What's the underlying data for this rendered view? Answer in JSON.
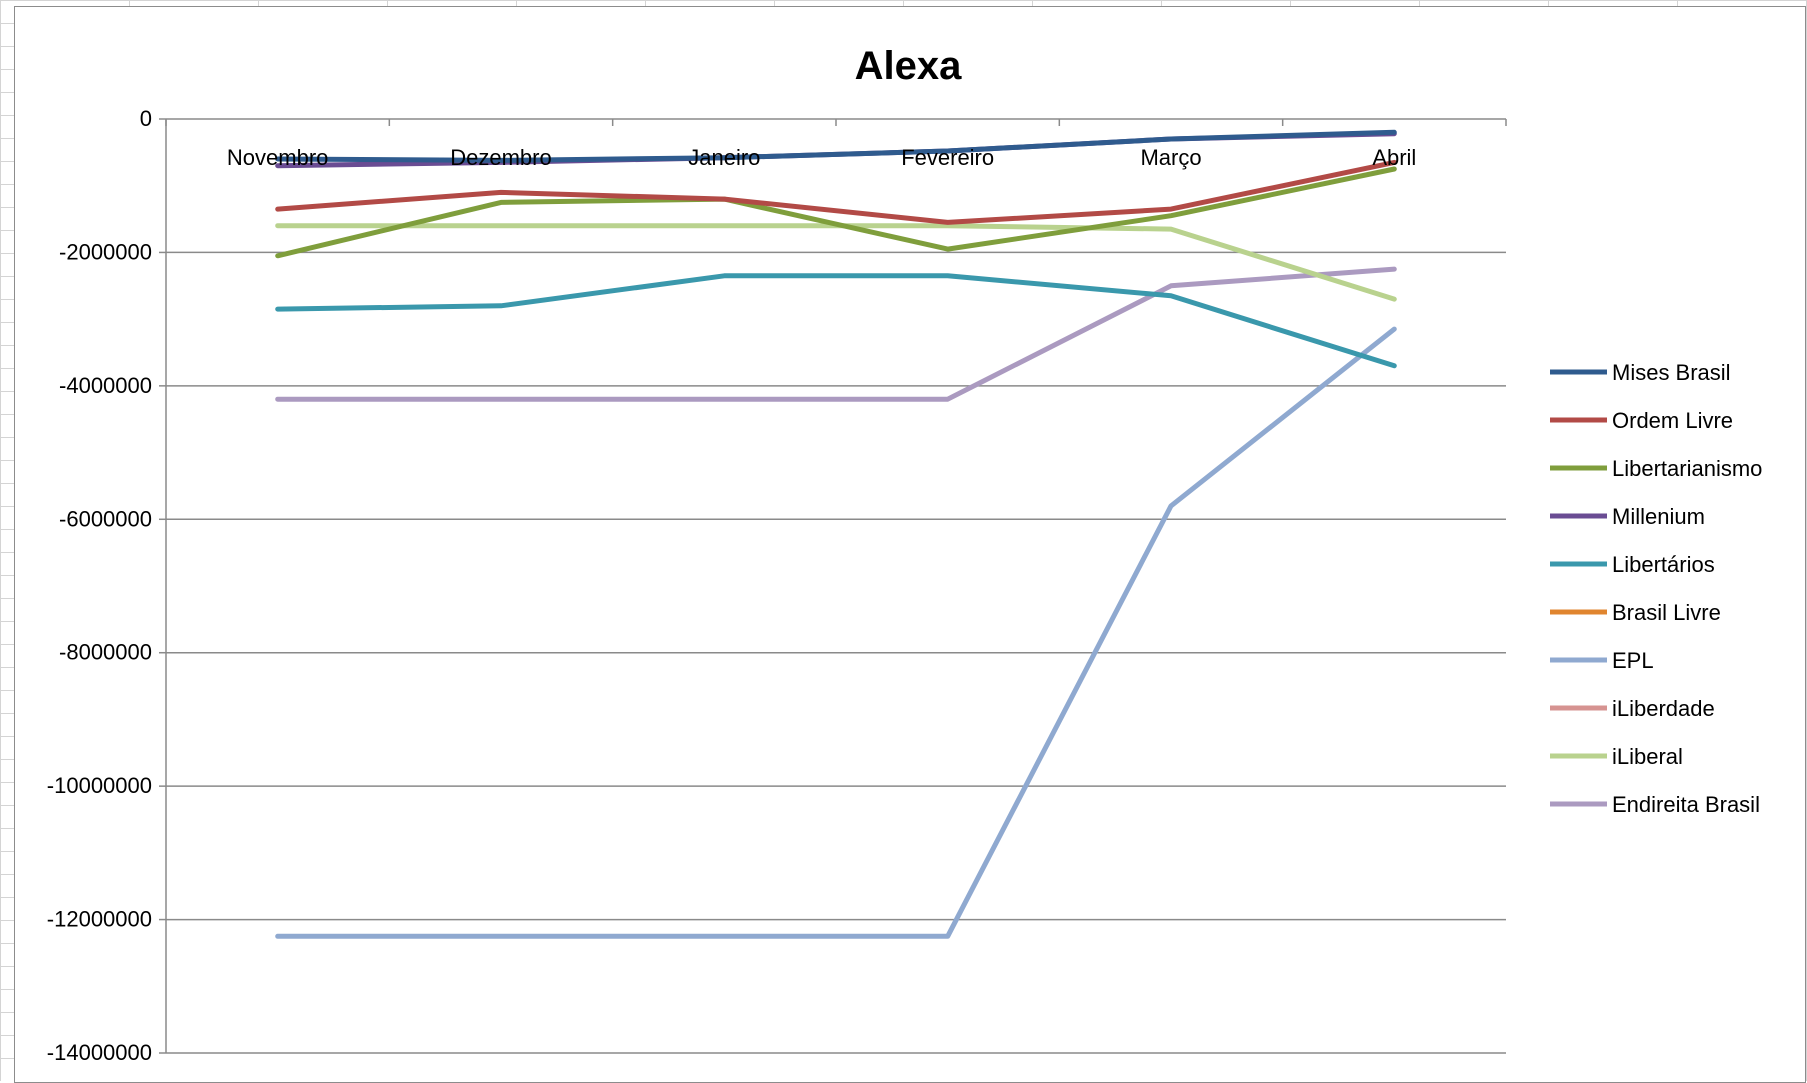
{
  "chart_data": {
    "type": "line",
    "title": "Alexa",
    "categories": [
      "Novembro",
      "Dezembro",
      "Janeiro",
      "Fevereiro",
      "Março",
      "Abril"
    ],
    "y_ticks": [
      "0",
      "-2000000",
      "-4000000",
      "-6000000",
      "-8000000",
      "-10000000",
      "-12000000",
      "-14000000"
    ],
    "ylim": [
      -14000000,
      0
    ],
    "grid": true,
    "legend_position": "right",
    "series": [
      {
        "name": "Mises Brasil",
        "color": "#2f5b8e",
        "values": [
          -600000,
          -620000,
          -580000,
          -480000,
          -300000,
          -200000
        ]
      },
      {
        "name": "Ordem Livre",
        "color": "#b24a46",
        "values": [
          -1350000,
          -1100000,
          -1200000,
          -1550000,
          -1350000,
          -650000
        ]
      },
      {
        "name": "Libertarianismo",
        "color": "#7f9e3c",
        "values": [
          -2050000,
          -1250000,
          -1200000,
          -1950000,
          -1450000,
          -750000
        ]
      },
      {
        "name": "Millenium",
        "color": "#6a4c93",
        "values": [
          -700000,
          -650000,
          -580000,
          -480000,
          -300000,
          -220000
        ]
      },
      {
        "name": "Libertários",
        "color": "#3a98ac",
        "values": [
          -2850000,
          -2800000,
          -2350000,
          -2350000,
          -2650000,
          -3700000
        ]
      },
      {
        "name": "Brasil Livre",
        "color": "#e0852f",
        "values": [
          null,
          null,
          null,
          null,
          null,
          null
        ]
      },
      {
        "name": "EPL",
        "color": "#8fa9d0",
        "values": [
          -12250000,
          -12250000,
          -12250000,
          -12250000,
          -5800000,
          -3150000
        ]
      },
      {
        "name": "iLiberdade",
        "color": "#d69391",
        "values": [
          null,
          null,
          null,
          null,
          null,
          null
        ]
      },
      {
        "name": "iLiberal",
        "color": "#b9d28e",
        "values": [
          -1600000,
          -1600000,
          -1600000,
          -1600000,
          -1650000,
          -2700000
        ]
      },
      {
        "name": "Endireita Brasil",
        "color": "#ab9ac0",
        "values": [
          -4200000,
          -4200000,
          -4200000,
          -4200000,
          -2500000,
          -2250000
        ]
      }
    ]
  }
}
